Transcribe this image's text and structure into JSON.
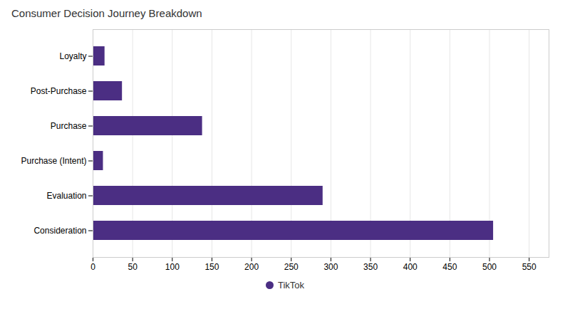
{
  "chart_data": {
    "type": "bar",
    "orientation": "horizontal",
    "title": "Consumer Decision Journey Breakdown",
    "categories": [
      "Consideration",
      "Evaluation",
      "Purchase (Intent)",
      "Purchase",
      "Post-Purchase",
      "Loyalty"
    ],
    "series": [
      {
        "name": "TikTok",
        "color": "#4B2E83",
        "values": [
          505,
          290,
          13,
          138,
          37,
          15
        ]
      }
    ],
    "xlim": [
      0,
      575
    ],
    "xticks": [
      0,
      50,
      100,
      150,
      200,
      250,
      300,
      350,
      400,
      450,
      500,
      550
    ],
    "grid": true,
    "legend": "bottom"
  }
}
